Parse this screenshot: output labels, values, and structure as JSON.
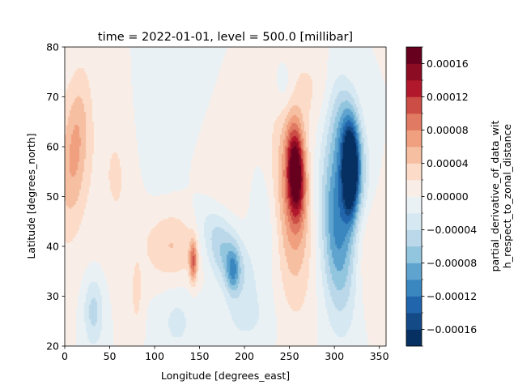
{
  "chart_data": {
    "type": "heatmap",
    "title": "time = 2022-01-01, level = 500.0 [millibar]",
    "xlabel": "Longitude [degrees_east]",
    "ylabel": "Latitude [degrees_north]",
    "colorbar_label": "partial_derivative_of_data_with_respect_to_zonal_distance",
    "colorbar_label_lines": [
      "partial_derivative_of_data_wit",
      "h_respect_to_zonal_distance"
    ],
    "xlim": [
      0,
      357.5
    ],
    "ylim": [
      20,
      80
    ],
    "x_ticks": [
      0,
      50,
      100,
      150,
      200,
      250,
      300,
      350
    ],
    "y_ticks": [
      20,
      30,
      40,
      50,
      60,
      70,
      80
    ],
    "colormap": "RdBu_r",
    "color_levels": [
      -0.00018,
      -0.00016,
      -0.00014,
      -0.00012,
      -0.0001,
      -8e-05,
      -6e-05,
      -4e-05,
      -2e-05,
      0,
      2e-05,
      4e-05,
      6e-05,
      8e-05,
      0.0001,
      0.00012,
      0.00014,
      0.00016,
      0.00018
    ],
    "colors": [
      "#053061",
      "#144b87",
      "#2166ac",
      "#3a87bf",
      "#5fa3cf",
      "#92c5de",
      "#bad8e9",
      "#d6e8f1",
      "#eaf1f5",
      "#f9eee7",
      "#fcdcc8",
      "#f6bfa2",
      "#f09f7f",
      "#e07a62",
      "#cb4d45",
      "#b2182b",
      "#8c0c24",
      "#67001f"
    ],
    "colorbar_ticks": [
      {
        "value": 0.00016,
        "label": "0.00016"
      },
      {
        "value": 0.00012,
        "label": "0.00012"
      },
      {
        "value": 8e-05,
        "label": "0.00008"
      },
      {
        "value": 4e-05,
        "label": "0.00004"
      },
      {
        "value": 0.0,
        "label": "0.00000"
      },
      {
        "value": -4e-05,
        "label": "−0.00004"
      },
      {
        "value": -8e-05,
        "label": "−0.00008"
      },
      {
        "value": -0.00012,
        "label": "−0.00012"
      },
      {
        "value": -0.00016,
        "label": "−0.00016"
      }
    ],
    "features": [
      {
        "lon": 257,
        "lat": 55,
        "value": 0.00016,
        "sx": 7,
        "sy": 6,
        "rot": -0.45
      },
      {
        "lon": 252,
        "lat": 48,
        "value": 7e-05,
        "sx": 16,
        "sy": 13,
        "rot": -0.45
      },
      {
        "lon": 318,
        "lat": 55,
        "value": -0.00018,
        "sx": 6,
        "sy": 6,
        "rot": -0.6
      },
      {
        "lon": 304,
        "lat": 45,
        "value": -0.00011,
        "sx": 14,
        "sy": 12,
        "rot": -0.6
      },
      {
        "lon": 318,
        "lat": 60,
        "value": -8e-05,
        "sx": 14,
        "sy": 7,
        "rot": -0.4
      },
      {
        "lon": 12,
        "lat": 60,
        "value": 5e-05,
        "sx": 12,
        "sy": 8,
        "rot": 0.7
      },
      {
        "lon": 0,
        "lat": 55,
        "value": 2e-05,
        "sx": 30,
        "sy": 15,
        "rot": 0
      },
      {
        "lon": 118,
        "lat": 40,
        "value": 4e-05,
        "sx": 22,
        "sy": 5,
        "rot": 0
      },
      {
        "lon": 143,
        "lat": 37,
        "value": 9e-05,
        "sx": 3,
        "sy": 3,
        "rot": 0
      },
      {
        "lon": 178,
        "lat": 39,
        "value": -7e-05,
        "sx": 20,
        "sy": 5,
        "rot": -0.2
      },
      {
        "lon": 187,
        "lat": 35,
        "value": -6e-05,
        "sx": 5,
        "sy": 3,
        "rot": 0
      },
      {
        "lon": 32,
        "lat": 27,
        "value": -5e-05,
        "sx": 8,
        "sy": 5,
        "rot": 0
      },
      {
        "lon": 60,
        "lat": 55,
        "value": 2e-05,
        "sx": 15,
        "sy": 12,
        "rot": 0
      },
      {
        "lon": 170,
        "lat": 55,
        "value": 2e-05,
        "sx": 30,
        "sy": 10,
        "rot": 0
      },
      {
        "lon": 120,
        "lat": 65,
        "value": -2e-05,
        "sx": 30,
        "sy": 10,
        "rot": 0
      },
      {
        "lon": 225,
        "lat": 45,
        "value": -2.5e-05,
        "sx": 14,
        "sy": 8,
        "rot": -0.3
      },
      {
        "lon": 275,
        "lat": 72,
        "value": 2e-05,
        "sx": 20,
        "sy": 6,
        "rot": 0
      },
      {
        "lon": 245,
        "lat": 72,
        "value": -2.5e-05,
        "sx": 8,
        "sy": 4,
        "rot": 0
      },
      {
        "lon": 125,
        "lat": 25,
        "value": -2.5e-05,
        "sx": 15,
        "sy": 5,
        "rot": 0
      },
      {
        "lon": 80,
        "lat": 30,
        "value": 2.5e-05,
        "sx": 5,
        "sy": 5,
        "rot": 0
      },
      {
        "lon": 340,
        "lat": 40,
        "value": 2.5e-05,
        "sx": 12,
        "sy": 8,
        "rot": 0
      },
      {
        "lon": 200,
        "lat": 25,
        "value": -2e-05,
        "sx": 20,
        "sy": 4,
        "rot": 0
      }
    ]
  }
}
